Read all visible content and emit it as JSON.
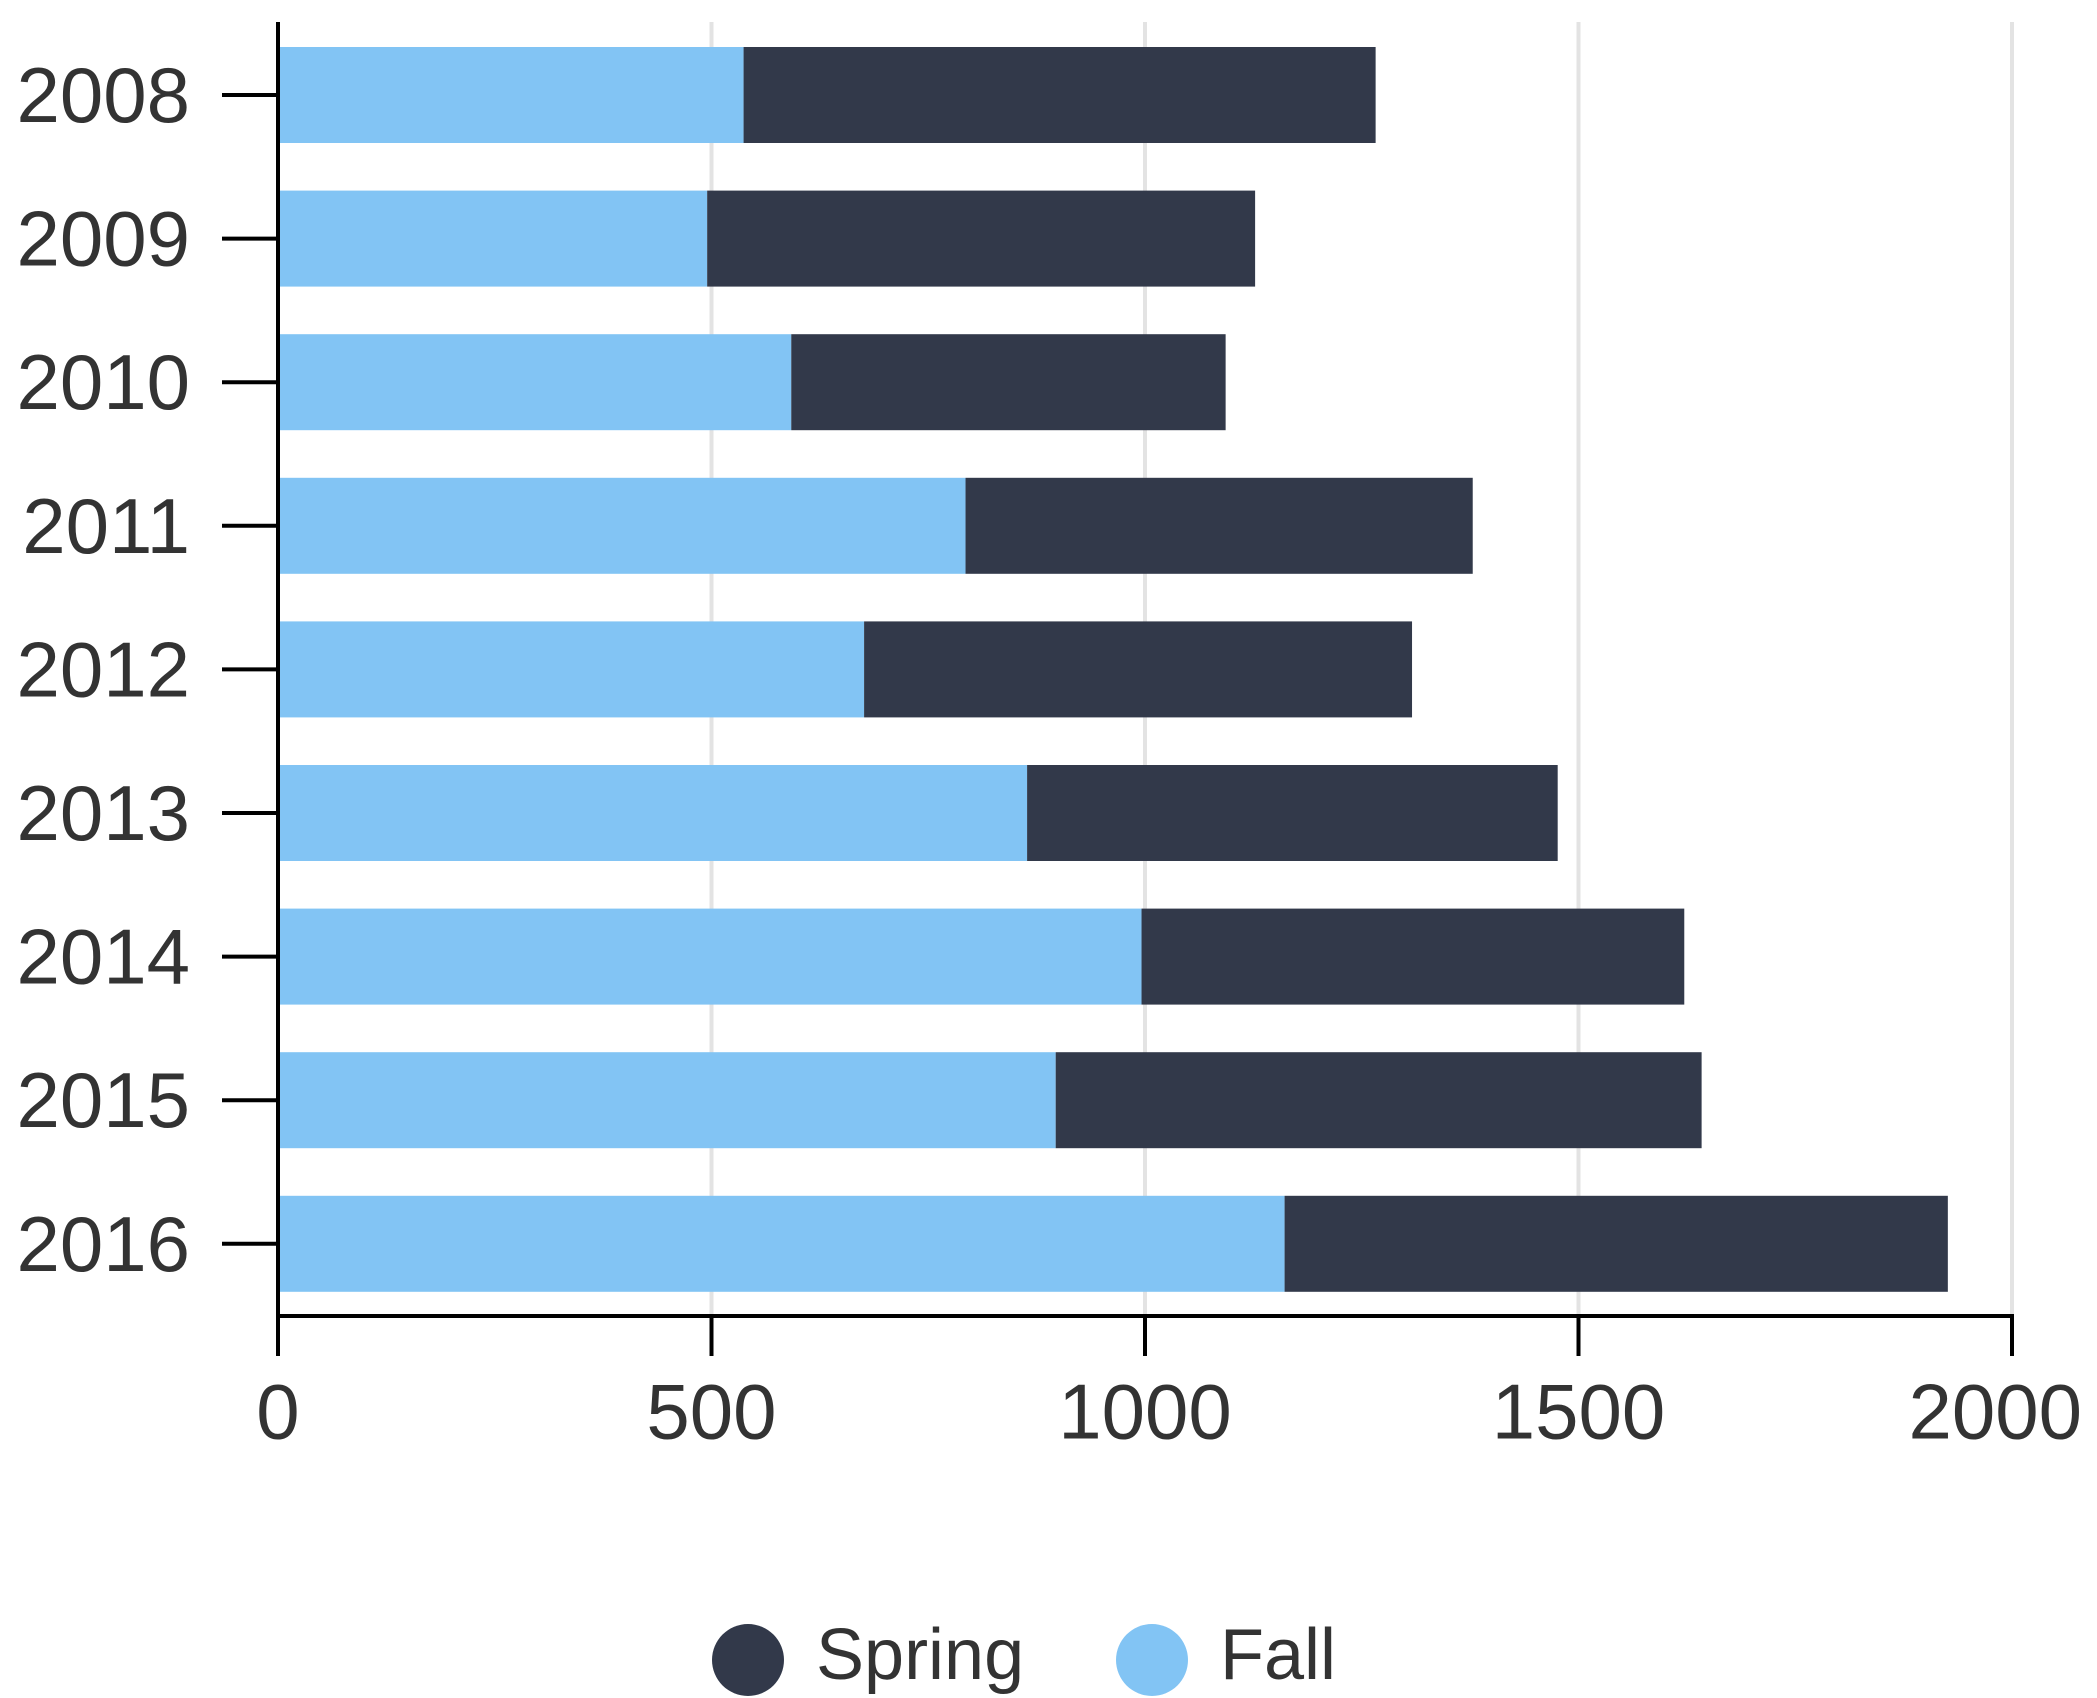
{
  "chart_data": {
    "type": "bar",
    "orientation": "horizontal",
    "stacked": true,
    "categories": [
      "2008",
      "2009",
      "2010",
      "2011",
      "2012",
      "2013",
      "2014",
      "2015",
      "2016"
    ],
    "series": [
      {
        "name": "Fall",
        "color": "#82c4f4",
        "values": [
          537,
          495,
          592,
          793,
          676,
          864,
          996,
          897,
          1161
        ]
      },
      {
        "name": "Spring",
        "color": "#32394a",
        "values": [
          729,
          632,
          501,
          585,
          632,
          612,
          626,
          745,
          765
        ]
      }
    ],
    "xlim": [
      0,
      2000
    ],
    "xticks": [
      "0",
      "500",
      "1000",
      "1500",
      "2000"
    ],
    "grid": "vertical",
    "legend_position": "bottom-center",
    "legend_order": [
      "Spring",
      "Fall"
    ],
    "title": "",
    "xlabel": "",
    "ylabel": ""
  }
}
